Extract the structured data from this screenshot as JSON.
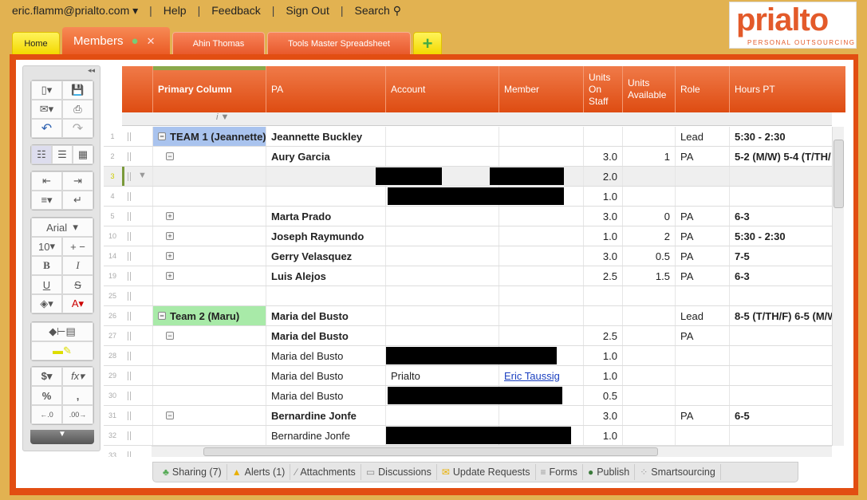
{
  "topnav": {
    "user": "eric.flamm@prialto.com ▾",
    "help": "Help",
    "feedback": "Feedback",
    "signout": "Sign Out",
    "search": "Search ⚲"
  },
  "logo": {
    "text": "prialto",
    "tagline": "PERSONAL OUTSOURCING"
  },
  "tabs": {
    "home": "Home",
    "members": "Members",
    "ahin": "Ahin Thomas",
    "tools": "Tools Master Spreadsheet",
    "add": "+"
  },
  "toolbar": {
    "font": "Arial",
    "size": "10"
  },
  "columns": [
    "Primary Column",
    "PA",
    "Account",
    "Member",
    "Units On Staff",
    "Units Available",
    "Role",
    "Hours PT"
  ],
  "rows": [
    {
      "num": "1",
      "primary": "TEAM 1 (Jeannette)",
      "toggle": "−",
      "pa": "Jeannette Buckley",
      "account": "",
      "member": "",
      "on": "",
      "avail": "",
      "role": "Lead",
      "hours": "5:30 - 2:30"
    },
    {
      "num": "2",
      "primary": "",
      "toggle": "−",
      "pa": "Aury Garcia",
      "account": "",
      "member": "",
      "on": "3.0",
      "avail": "1",
      "role": "PA",
      "hours": "5-2 (M/W) 5-4 (T/TH/"
    },
    {
      "num": "3",
      "primary": "",
      "toggle": "",
      "pa": "",
      "account": "",
      "member": "",
      "on": "2.0",
      "avail": "",
      "role": "",
      "hours": ""
    },
    {
      "num": "4",
      "primary": "",
      "toggle": "",
      "pa": "",
      "account": "",
      "member": "",
      "on": "1.0",
      "avail": "",
      "role": "",
      "hours": ""
    },
    {
      "num": "5",
      "primary": "",
      "toggle": "+",
      "pa": "Marta Prado",
      "account": "",
      "member": "",
      "on": "3.0",
      "avail": "0",
      "role": "PA",
      "hours": "6-3"
    },
    {
      "num": "10",
      "primary": "",
      "toggle": "+",
      "pa": "Joseph Raymundo",
      "account": "",
      "member": "",
      "on": "1.0",
      "avail": "2",
      "role": "PA",
      "hours": "5:30 - 2:30"
    },
    {
      "num": "14",
      "primary": "",
      "toggle": "+",
      "pa": "Gerry Velasquez",
      "account": "",
      "member": "",
      "on": "3.0",
      "avail": "0.5",
      "role": "PA",
      "hours": "7-5"
    },
    {
      "num": "19",
      "primary": "",
      "toggle": "+",
      "pa": "Luis Alejos",
      "account": "",
      "member": "",
      "on": "2.5",
      "avail": "1.5",
      "role": "PA",
      "hours": "6-3"
    },
    {
      "num": "25",
      "primary": "",
      "toggle": "",
      "pa": "",
      "account": "",
      "member": "",
      "on": "",
      "avail": "",
      "role": "",
      "hours": ""
    },
    {
      "num": "26",
      "primary": "Team 2 (Maru)",
      "toggle": "−",
      "pa": "Maria del Busto",
      "account": "",
      "member": "",
      "on": "",
      "avail": "",
      "role": "Lead",
      "hours": "8-5 (T/TH/F) 6-5 (M/W"
    },
    {
      "num": "27",
      "primary": "",
      "toggle": "−",
      "pa": "Maria del Busto",
      "account": "",
      "member": "",
      "on": "2.5",
      "avail": "",
      "role": "PA",
      "hours": ""
    },
    {
      "num": "28",
      "primary": "",
      "toggle": "",
      "pa": "Maria del Busto",
      "account": "",
      "member": "",
      "on": "1.0",
      "avail": "",
      "role": "",
      "hours": ""
    },
    {
      "num": "29",
      "primary": "",
      "toggle": "",
      "pa": "Maria del Busto",
      "account": "Prialto",
      "member": "Eric Taussig",
      "on": "1.0",
      "avail": "",
      "role": "",
      "hours": ""
    },
    {
      "num": "30",
      "primary": "",
      "toggle": "",
      "pa": "Maria del Busto",
      "account": "",
      "member": "",
      "on": "0.5",
      "avail": "",
      "role": "",
      "hours": ""
    },
    {
      "num": "31",
      "primary": "",
      "toggle": "−",
      "pa": "Bernardine Jonfe",
      "account": "",
      "member": "",
      "on": "3.0",
      "avail": "",
      "role": "PA",
      "hours": "6-5"
    },
    {
      "num": "32",
      "primary": "",
      "toggle": "",
      "pa": "Bernardine Jonfe",
      "account": "",
      "member": "",
      "on": "1.0",
      "avail": "",
      "role": "",
      "hours": ""
    },
    {
      "num": "33",
      "primary": "",
      "toggle": "",
      "pa": "",
      "account": "",
      "member": "",
      "on": "",
      "avail": "",
      "role": "",
      "hours": ""
    }
  ],
  "bottom_tabs": [
    "Sharing (7)",
    "Alerts (1)",
    "Attachments",
    "Discussions",
    "Update Requests",
    "Forms",
    "Publish",
    "Smartsourcing"
  ],
  "colors": {
    "accent": "#e24e12",
    "background": "#e2b251",
    "team1": "#a9c3ee",
    "team2": "#a8eaa8"
  }
}
